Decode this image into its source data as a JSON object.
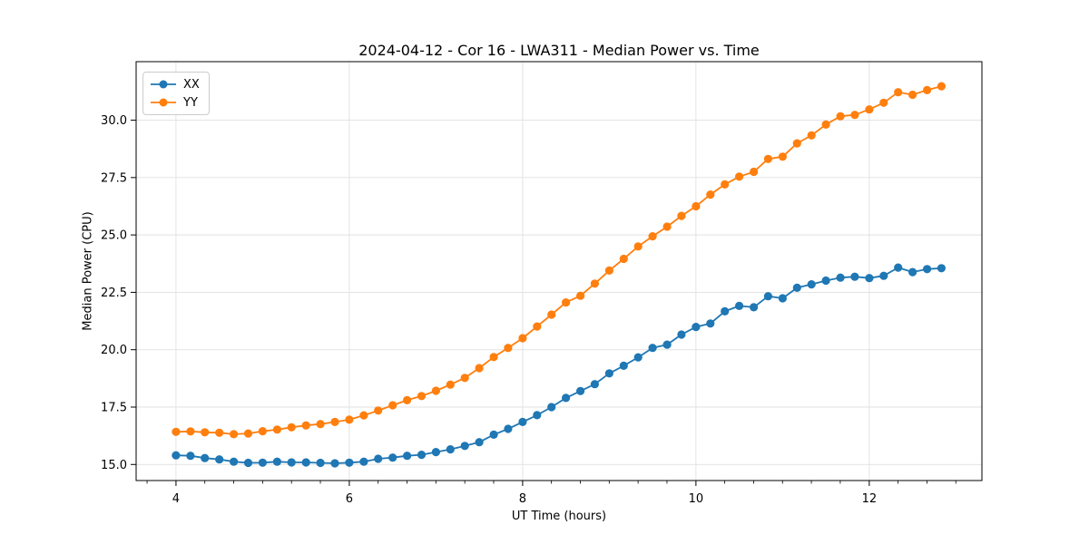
{
  "chart_data": {
    "type": "line",
    "title": "2024-04-12 - Cor 16 - LWA311 - Median Power vs. Time",
    "xlabel": "UT Time (hours)",
    "ylabel": "Median Power (CPU)",
    "xlim": [
      3.54,
      13.3
    ],
    "ylim": [
      14.3,
      32.55
    ],
    "xticks": [
      4,
      6,
      8,
      10,
      12
    ],
    "yticks": [
      15.0,
      17.5,
      20.0,
      22.5,
      25.0,
      27.5,
      30.0
    ],
    "x_minor_tick_step": 0.3333,
    "grid": true,
    "grid_color": "#e0e0e0",
    "legend_position": "upper-left",
    "marker": "circle",
    "x": [
      4.0,
      4.167,
      4.333,
      4.5,
      4.667,
      4.833,
      5.0,
      5.167,
      5.333,
      5.5,
      5.667,
      5.833,
      6.0,
      6.167,
      6.333,
      6.5,
      6.667,
      6.833,
      7.0,
      7.167,
      7.333,
      7.5,
      7.667,
      7.833,
      8.0,
      8.167,
      8.333,
      8.5,
      8.667,
      8.833,
      9.0,
      9.167,
      9.333,
      9.5,
      9.667,
      9.833,
      10.0,
      10.167,
      10.333,
      10.5,
      10.667,
      10.833,
      11.0,
      11.167,
      11.333,
      11.5,
      11.667,
      11.833,
      12.0,
      12.167,
      12.333,
      12.5,
      12.667,
      12.833
    ],
    "series": [
      {
        "name": "XX",
        "color": "#1f77b4",
        "values": [
          15.4,
          15.38,
          15.28,
          15.22,
          15.12,
          15.07,
          15.08,
          15.12,
          15.09,
          15.09,
          15.07,
          15.05,
          15.08,
          15.12,
          15.25,
          15.3,
          15.38,
          15.42,
          15.54,
          15.66,
          15.81,
          15.97,
          16.3,
          16.55,
          16.85,
          17.15,
          17.5,
          17.9,
          18.2,
          18.5,
          18.97,
          19.3,
          19.67,
          20.08,
          20.22,
          20.66,
          20.99,
          21.14,
          21.67,
          21.91,
          21.85,
          22.33,
          22.24,
          22.7,
          22.85,
          23.01,
          23.14,
          23.18,
          23.12,
          23.22,
          23.58,
          23.38,
          23.51,
          23.55
        ]
      },
      {
        "name": "YY",
        "color": "#ff7f0e",
        "values": [
          16.42,
          16.44,
          16.4,
          16.38,
          16.32,
          16.35,
          16.45,
          16.52,
          16.62,
          16.7,
          16.76,
          16.85,
          16.95,
          17.14,
          17.35,
          17.58,
          17.8,
          17.98,
          18.21,
          18.48,
          18.77,
          19.2,
          19.68,
          20.08,
          20.5,
          21.01,
          21.53,
          22.06,
          22.35,
          22.88,
          23.45,
          23.96,
          24.5,
          24.94,
          25.36,
          25.83,
          26.25,
          26.76,
          27.2,
          27.54,
          27.75,
          28.31,
          28.41,
          28.99,
          29.34,
          29.81,
          30.17,
          30.23,
          30.47,
          30.76,
          31.22,
          31.11,
          31.31,
          31.48
        ]
      }
    ]
  }
}
